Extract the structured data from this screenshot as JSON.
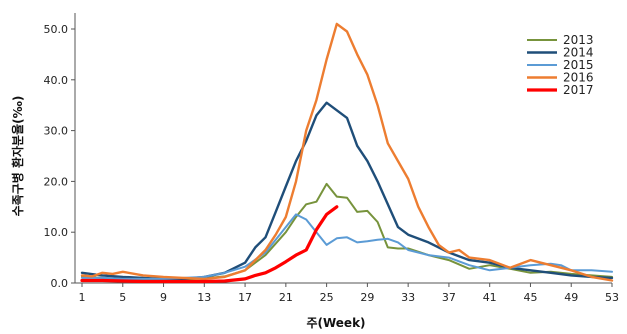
{
  "chart_data": {
    "type": "line",
    "xlabel": "주(Week)",
    "ylabel": "수족구병 환자분율(‰)",
    "xlim": [
      1,
      53
    ],
    "ylim": [
      0,
      50
    ],
    "x_ticks": [
      "1",
      "5",
      "9",
      "13",
      "17",
      "21",
      "25",
      "29",
      "33",
      "37",
      "41",
      "45",
      "49",
      "53"
    ],
    "y_ticks": [
      "0.0",
      "10.0",
      "20.0",
      "30.0",
      "40.0",
      "50.0"
    ],
    "legend_position": "top-right",
    "grid": false,
    "series": [
      {
        "name": "2013",
        "color": "#77933c",
        "width": 2,
        "x": [
          1,
          3,
          5,
          7,
          9,
          11,
          13,
          15,
          17,
          19,
          21,
          22,
          23,
          24,
          25,
          26,
          27,
          28,
          29,
          30,
          31,
          32,
          33,
          35,
          37,
          39,
          41,
          43,
          45,
          47,
          49,
          51,
          53
        ],
        "y": [
          1.2,
          1.0,
          0.8,
          0.6,
          0.6,
          0.7,
          0.9,
          1.3,
          2.5,
          5.5,
          10.0,
          13.0,
          15.5,
          16.0,
          19.5,
          17.0,
          16.8,
          14.0,
          14.2,
          12.0,
          7.0,
          6.8,
          6.8,
          5.5,
          4.5,
          2.8,
          3.5,
          2.8,
          2.0,
          2.2,
          1.8,
          1.5,
          1.2
        ]
      },
      {
        "name": "2014",
        "color": "#1f4e79",
        "width": 2.4,
        "x": [
          1,
          3,
          5,
          7,
          9,
          11,
          13,
          15,
          17,
          18,
          19,
          20,
          21,
          22,
          23,
          24,
          25,
          26,
          27,
          28,
          29,
          30,
          31,
          32,
          33,
          35,
          37,
          39,
          41,
          43,
          45,
          47,
          49,
          51,
          53
        ],
        "y": [
          2.0,
          1.5,
          1.2,
          1.0,
          0.8,
          0.8,
          1.2,
          2.0,
          4.0,
          7.0,
          9.0,
          14.0,
          19.0,
          24.0,
          28.0,
          33.0,
          35.5,
          34.0,
          32.5,
          27.0,
          24.0,
          20.0,
          15.5,
          11.0,
          9.5,
          8.0,
          6.0,
          4.5,
          4.0,
          3.0,
          2.5,
          2.0,
          1.5,
          1.2,
          1.0
        ]
      },
      {
        "name": "2015",
        "color": "#5b9bd5",
        "width": 2,
        "x": [
          1,
          3,
          5,
          7,
          9,
          11,
          13,
          15,
          17,
          19,
          21,
          22,
          23,
          24,
          25,
          26,
          27,
          28,
          29,
          30,
          31,
          32,
          33,
          35,
          37,
          39,
          41,
          43,
          45,
          47,
          48,
          49,
          51,
          53
        ],
        "y": [
          1.0,
          1.0,
          0.8,
          0.8,
          0.8,
          1.0,
          1.2,
          2.0,
          3.2,
          6.0,
          11.0,
          13.5,
          12.5,
          10.0,
          7.5,
          8.8,
          9.0,
          8.0,
          8.2,
          8.5,
          8.7,
          8.0,
          6.5,
          5.5,
          5.0,
          3.5,
          2.5,
          3.0,
          3.5,
          3.8,
          3.5,
          2.5,
          2.5,
          2.2
        ]
      },
      {
        "name": "2016",
        "color": "#ed7d31",
        "width": 2.4,
        "x": [
          1,
          2,
          3,
          4,
          5,
          7,
          9,
          11,
          13,
          15,
          17,
          19,
          20,
          21,
          22,
          23,
          24,
          25,
          26,
          27,
          28,
          29,
          30,
          31,
          32,
          33,
          34,
          35,
          36,
          37,
          38,
          39,
          41,
          43,
          45,
          47,
          49,
          51,
          53
        ],
        "y": [
          1.5,
          1.3,
          2.0,
          1.8,
          2.2,
          1.5,
          1.2,
          1.0,
          0.8,
          1.2,
          2.5,
          6.5,
          9.5,
          13.0,
          20.0,
          30.0,
          36.0,
          44.0,
          51.0,
          49.5,
          45.0,
          41.0,
          35.0,
          27.5,
          24.0,
          20.5,
          15.0,
          11.0,
          7.5,
          6.0,
          6.5,
          5.0,
          4.5,
          3.0,
          4.5,
          3.5,
          2.5,
          1.2,
          0.5
        ]
      },
      {
        "name": "2017",
        "color": "#ff0000",
        "width": 3.2,
        "x": [
          1,
          3,
          5,
          7,
          9,
          11,
          13,
          15,
          17,
          18,
          19,
          20,
          21,
          22,
          23,
          24,
          25,
          26
        ],
        "y": [
          0.5,
          0.5,
          0.4,
          0.3,
          0.3,
          0.3,
          0.3,
          0.4,
          0.8,
          1.5,
          2.0,
          3.0,
          4.2,
          5.5,
          6.5,
          10.5,
          13.5,
          15.0
        ]
      }
    ]
  }
}
